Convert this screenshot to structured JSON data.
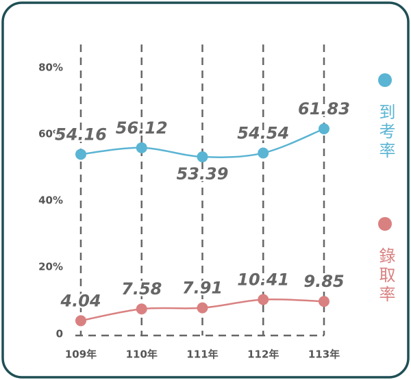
{
  "chart_data": {
    "type": "line",
    "categories": [
      "109年",
      "110年",
      "111年",
      "112年",
      "113年"
    ],
    "series": [
      {
        "name": "到考率",
        "color": "#5ab4d3",
        "values": [
          54.16,
          56.12,
          53.39,
          54.54,
          61.83
        ]
      },
      {
        "name": "錄取率",
        "color": "#d98080",
        "values": [
          4.04,
          7.58,
          7.91,
          10.41,
          9.85
        ]
      }
    ],
    "ylim": [
      0,
      80
    ],
    "yticks": [
      0,
      {
        "value": 20,
        "label": "20%"
      },
      {
        "value": 40,
        "label": "40%"
      },
      {
        "value": 60,
        "label": "60%"
      },
      {
        "value": 80,
        "label": "80%"
      }
    ],
    "grid": true,
    "legend": "right"
  }
}
